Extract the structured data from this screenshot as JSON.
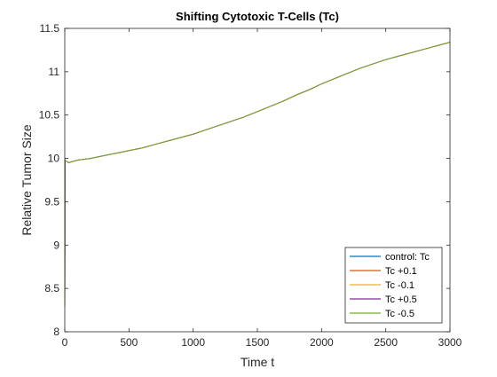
{
  "chart_data": {
    "type": "line",
    "title": "Shifting Cytotoxic T-Cells (Tc)",
    "xlabel": "Time t",
    "ylabel": "Relative Tumor Size",
    "xlim": [
      0,
      3000
    ],
    "ylim": [
      8,
      11.5
    ],
    "xticks": [
      0,
      500,
      1000,
      1500,
      2000,
      2500,
      3000
    ],
    "yticks": [
      8,
      8.5,
      9,
      9.5,
      10,
      10.5,
      11,
      11.5
    ],
    "xtick_labels": [
      "0",
      "500",
      "1000",
      "1500",
      "2000",
      "2500",
      "3000"
    ],
    "ytick_labels": [
      "8",
      "8.5",
      "9",
      "9.5",
      "10",
      "10.5",
      "11",
      "11.5"
    ],
    "grid": false,
    "legend_position": "bottom-right",
    "series": [
      {
        "name": "control: Tc",
        "color": "#0072BD",
        "x": [
          0,
          2,
          5,
          10,
          20,
          30,
          50,
          100,
          200,
          300,
          400,
          500,
          600,
          700,
          800,
          900,
          1000,
          1100,
          1200,
          1300,
          1400,
          1500,
          1600,
          1700,
          1800,
          1900,
          2000,
          2100,
          2200,
          2300,
          2400,
          2500,
          2600,
          2700,
          2800,
          2900,
          3000
        ],
        "y": [
          8.3,
          9.99,
          9.97,
          9.97,
          9.96,
          9.95,
          9.96,
          9.98,
          10.0,
          10.03,
          10.06,
          10.09,
          10.12,
          10.16,
          10.2,
          10.24,
          10.28,
          10.33,
          10.38,
          10.43,
          10.48,
          10.54,
          10.6,
          10.66,
          10.73,
          10.79,
          10.86,
          10.92,
          10.98,
          11.04,
          11.09,
          11.14,
          11.18,
          11.22,
          11.26,
          11.3,
          11.34
        ]
      },
      {
        "name": "Tc +0.1",
        "color": "#D95319",
        "x": [
          0,
          2,
          5,
          10,
          20,
          30,
          50,
          100,
          200,
          300,
          400,
          500,
          600,
          700,
          800,
          900,
          1000,
          1100,
          1200,
          1300,
          1400,
          1500,
          1600,
          1700,
          1800,
          1900,
          2000,
          2100,
          2200,
          2300,
          2400,
          2500,
          2600,
          2700,
          2800,
          2900,
          3000
        ],
        "y": [
          8.3,
          9.99,
          9.97,
          9.97,
          9.96,
          9.95,
          9.96,
          9.98,
          10.0,
          10.03,
          10.06,
          10.09,
          10.12,
          10.16,
          10.2,
          10.24,
          10.28,
          10.33,
          10.38,
          10.43,
          10.48,
          10.54,
          10.6,
          10.66,
          10.73,
          10.79,
          10.86,
          10.92,
          10.98,
          11.04,
          11.09,
          11.14,
          11.18,
          11.22,
          11.26,
          11.3,
          11.34
        ]
      },
      {
        "name": "Tc -0.1",
        "color": "#EDB120",
        "x": [
          0,
          2,
          5,
          10,
          20,
          30,
          50,
          100,
          200,
          300,
          400,
          500,
          600,
          700,
          800,
          900,
          1000,
          1100,
          1200,
          1300,
          1400,
          1500,
          1600,
          1700,
          1800,
          1900,
          2000,
          2100,
          2200,
          2300,
          2400,
          2500,
          2600,
          2700,
          2800,
          2900,
          3000
        ],
        "y": [
          8.3,
          9.99,
          9.97,
          9.97,
          9.96,
          9.95,
          9.96,
          9.98,
          10.0,
          10.03,
          10.06,
          10.09,
          10.12,
          10.16,
          10.2,
          10.24,
          10.28,
          10.33,
          10.38,
          10.43,
          10.48,
          10.54,
          10.6,
          10.66,
          10.73,
          10.79,
          10.86,
          10.92,
          10.98,
          11.04,
          11.09,
          11.14,
          11.18,
          11.22,
          11.26,
          11.3,
          11.34
        ]
      },
      {
        "name": "Tc +0.5",
        "color": "#7E2F8E",
        "x": [
          0,
          2,
          5,
          10,
          20,
          30,
          50,
          100,
          200,
          300,
          400,
          500,
          600,
          700,
          800,
          900,
          1000,
          1100,
          1200,
          1300,
          1400,
          1500,
          1600,
          1700,
          1800,
          1900,
          2000,
          2100,
          2200,
          2300,
          2400,
          2500,
          2600,
          2700,
          2800,
          2900,
          3000
        ],
        "y": [
          8.3,
          9.99,
          9.97,
          9.97,
          9.96,
          9.95,
          9.96,
          9.98,
          10.0,
          10.03,
          10.06,
          10.09,
          10.12,
          10.16,
          10.2,
          10.24,
          10.28,
          10.33,
          10.38,
          10.43,
          10.48,
          10.54,
          10.6,
          10.66,
          10.73,
          10.79,
          10.86,
          10.92,
          10.98,
          11.04,
          11.09,
          11.14,
          11.18,
          11.22,
          11.26,
          11.3,
          11.34
        ]
      },
      {
        "name": "Tc -0.5",
        "color": "#77AC30",
        "x": [
          0,
          2,
          5,
          10,
          20,
          30,
          50,
          100,
          200,
          300,
          400,
          500,
          600,
          700,
          800,
          900,
          1000,
          1100,
          1200,
          1300,
          1400,
          1500,
          1600,
          1700,
          1800,
          1900,
          2000,
          2100,
          2200,
          2300,
          2400,
          2500,
          2600,
          2700,
          2800,
          2900,
          3000
        ],
        "y": [
          8.3,
          9.99,
          9.97,
          9.97,
          9.96,
          9.95,
          9.96,
          9.98,
          10.0,
          10.03,
          10.06,
          10.09,
          10.12,
          10.16,
          10.2,
          10.24,
          10.28,
          10.33,
          10.38,
          10.43,
          10.48,
          10.54,
          10.6,
          10.66,
          10.73,
          10.79,
          10.86,
          10.92,
          10.98,
          11.04,
          11.09,
          11.14,
          11.18,
          11.22,
          11.26,
          11.3,
          11.34
        ]
      }
    ]
  }
}
